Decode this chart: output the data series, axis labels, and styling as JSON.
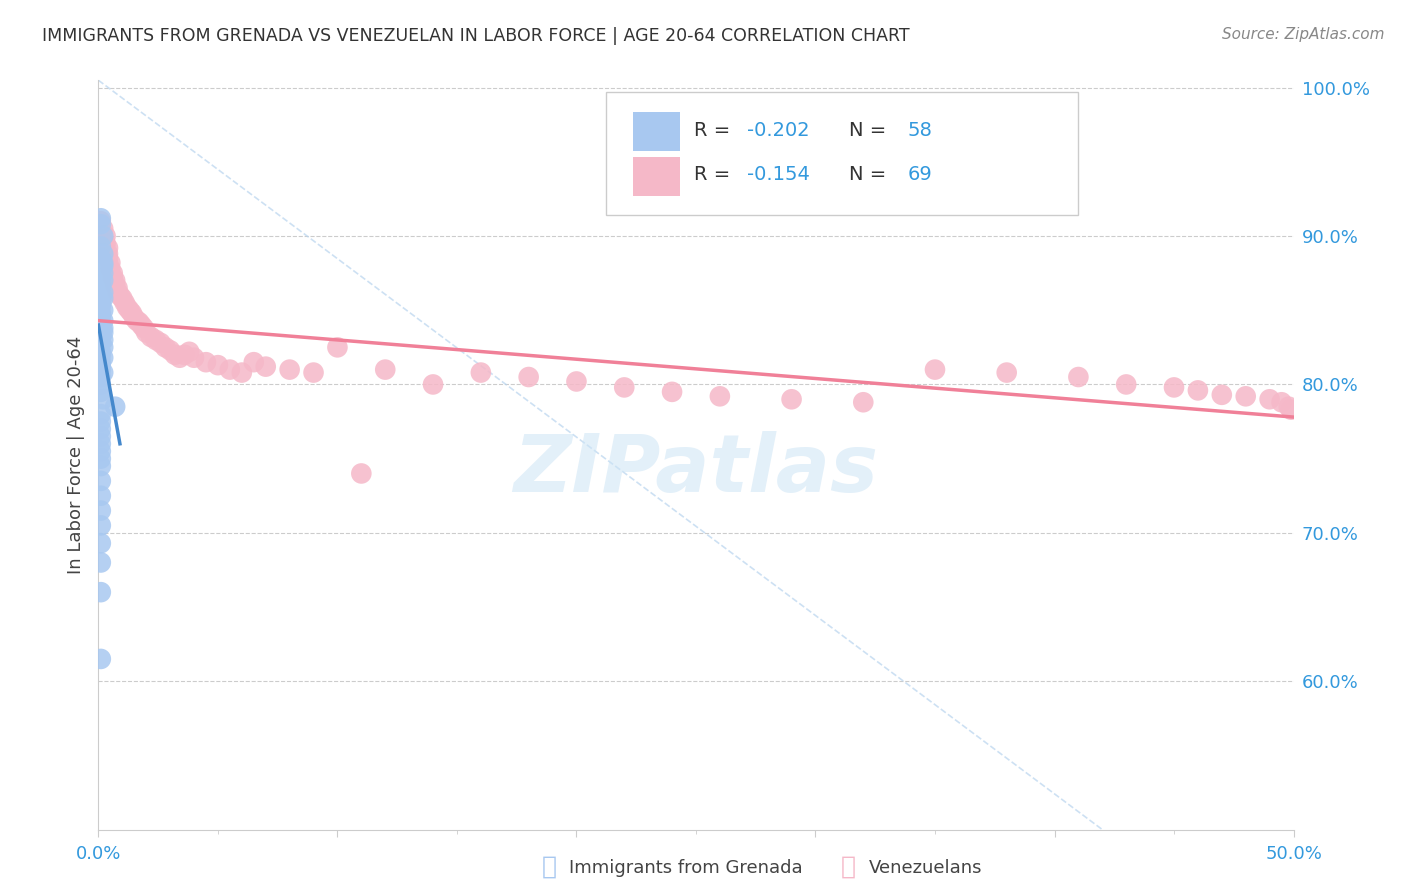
{
  "title": "IMMIGRANTS FROM GRENADA VS VENEZUELAN IN LABOR FORCE | AGE 20-64 CORRELATION CHART",
  "source": "Source: ZipAtlas.com",
  "ylabel": "In Labor Force | Age 20-64",
  "xlim": [
    0.0,
    0.5
  ],
  "ylim": [
    0.5,
    1.005
  ],
  "grenada_R": -0.202,
  "grenada_N": 58,
  "venezuelan_R": -0.154,
  "venezuelan_N": 69,
  "grenada_color": "#a8c8f0",
  "venezuelan_color": "#f5b8c8",
  "grenada_line_color": "#4488cc",
  "venezuelan_line_color": "#f08098",
  "watermark": "ZIPatlas",
  "grenada_x": [
    0.001,
    0.001,
    0.002,
    0.001,
    0.002,
    0.001,
    0.002,
    0.002,
    0.001,
    0.002,
    0.001,
    0.002,
    0.001,
    0.001,
    0.002,
    0.001,
    0.002,
    0.001,
    0.001,
    0.002,
    0.001,
    0.001,
    0.002,
    0.001,
    0.002,
    0.002,
    0.001,
    0.002,
    0.001,
    0.002,
    0.001,
    0.001,
    0.002,
    0.001,
    0.001,
    0.001,
    0.002,
    0.001,
    0.001,
    0.001,
    0.002,
    0.007,
    0.001,
    0.001,
    0.001,
    0.001,
    0.001,
    0.001,
    0.001,
    0.001,
    0.001,
    0.001,
    0.001,
    0.001,
    0.001,
    0.001,
    0.001,
    0.001
  ],
  "grenada_y": [
    0.912,
    0.908,
    0.9,
    0.893,
    0.888,
    0.885,
    0.882,
    0.88,
    0.878,
    0.875,
    0.872,
    0.87,
    0.868,
    0.865,
    0.862,
    0.86,
    0.858,
    0.855,
    0.853,
    0.85,
    0.848,
    0.845,
    0.843,
    0.84,
    0.838,
    0.835,
    0.833,
    0.83,
    0.828,
    0.825,
    0.822,
    0.82,
    0.818,
    0.815,
    0.812,
    0.81,
    0.808,
    0.805,
    0.8,
    0.795,
    0.79,
    0.785,
    0.78,
    0.775,
    0.77,
    0.765,
    0.76,
    0.755,
    0.75,
    0.745,
    0.735,
    0.725,
    0.715,
    0.705,
    0.693,
    0.68,
    0.66,
    0.615
  ],
  "venezuelan_x": [
    0.001,
    0.002,
    0.003,
    0.003,
    0.004,
    0.004,
    0.004,
    0.005,
    0.005,
    0.006,
    0.006,
    0.007,
    0.007,
    0.008,
    0.008,
    0.009,
    0.01,
    0.011,
    0.012,
    0.013,
    0.014,
    0.015,
    0.016,
    0.017,
    0.018,
    0.019,
    0.02,
    0.022,
    0.024,
    0.026,
    0.028,
    0.03,
    0.032,
    0.034,
    0.036,
    0.038,
    0.04,
    0.045,
    0.05,
    0.055,
    0.06,
    0.065,
    0.07,
    0.08,
    0.09,
    0.1,
    0.11,
    0.12,
    0.14,
    0.16,
    0.18,
    0.2,
    0.22,
    0.24,
    0.26,
    0.29,
    0.32,
    0.35,
    0.38,
    0.41,
    0.43,
    0.45,
    0.46,
    0.47,
    0.48,
    0.49,
    0.495,
    0.498,
    0.499
  ],
  "venezuelan_y": [
    0.91,
    0.905,
    0.9,
    0.895,
    0.892,
    0.888,
    0.885,
    0.882,
    0.878,
    0.875,
    0.872,
    0.87,
    0.867,
    0.865,
    0.862,
    0.86,
    0.858,
    0.855,
    0.852,
    0.85,
    0.848,
    0.845,
    0.843,
    0.842,
    0.84,
    0.838,
    0.835,
    0.832,
    0.83,
    0.828,
    0.825,
    0.823,
    0.82,
    0.818,
    0.82,
    0.822,
    0.818,
    0.815,
    0.813,
    0.81,
    0.808,
    0.815,
    0.812,
    0.81,
    0.808,
    0.825,
    0.74,
    0.81,
    0.8,
    0.808,
    0.805,
    0.802,
    0.798,
    0.795,
    0.792,
    0.79,
    0.788,
    0.81,
    0.808,
    0.805,
    0.8,
    0.798,
    0.796,
    0.793,
    0.792,
    0.79,
    0.788,
    0.785,
    0.783
  ]
}
